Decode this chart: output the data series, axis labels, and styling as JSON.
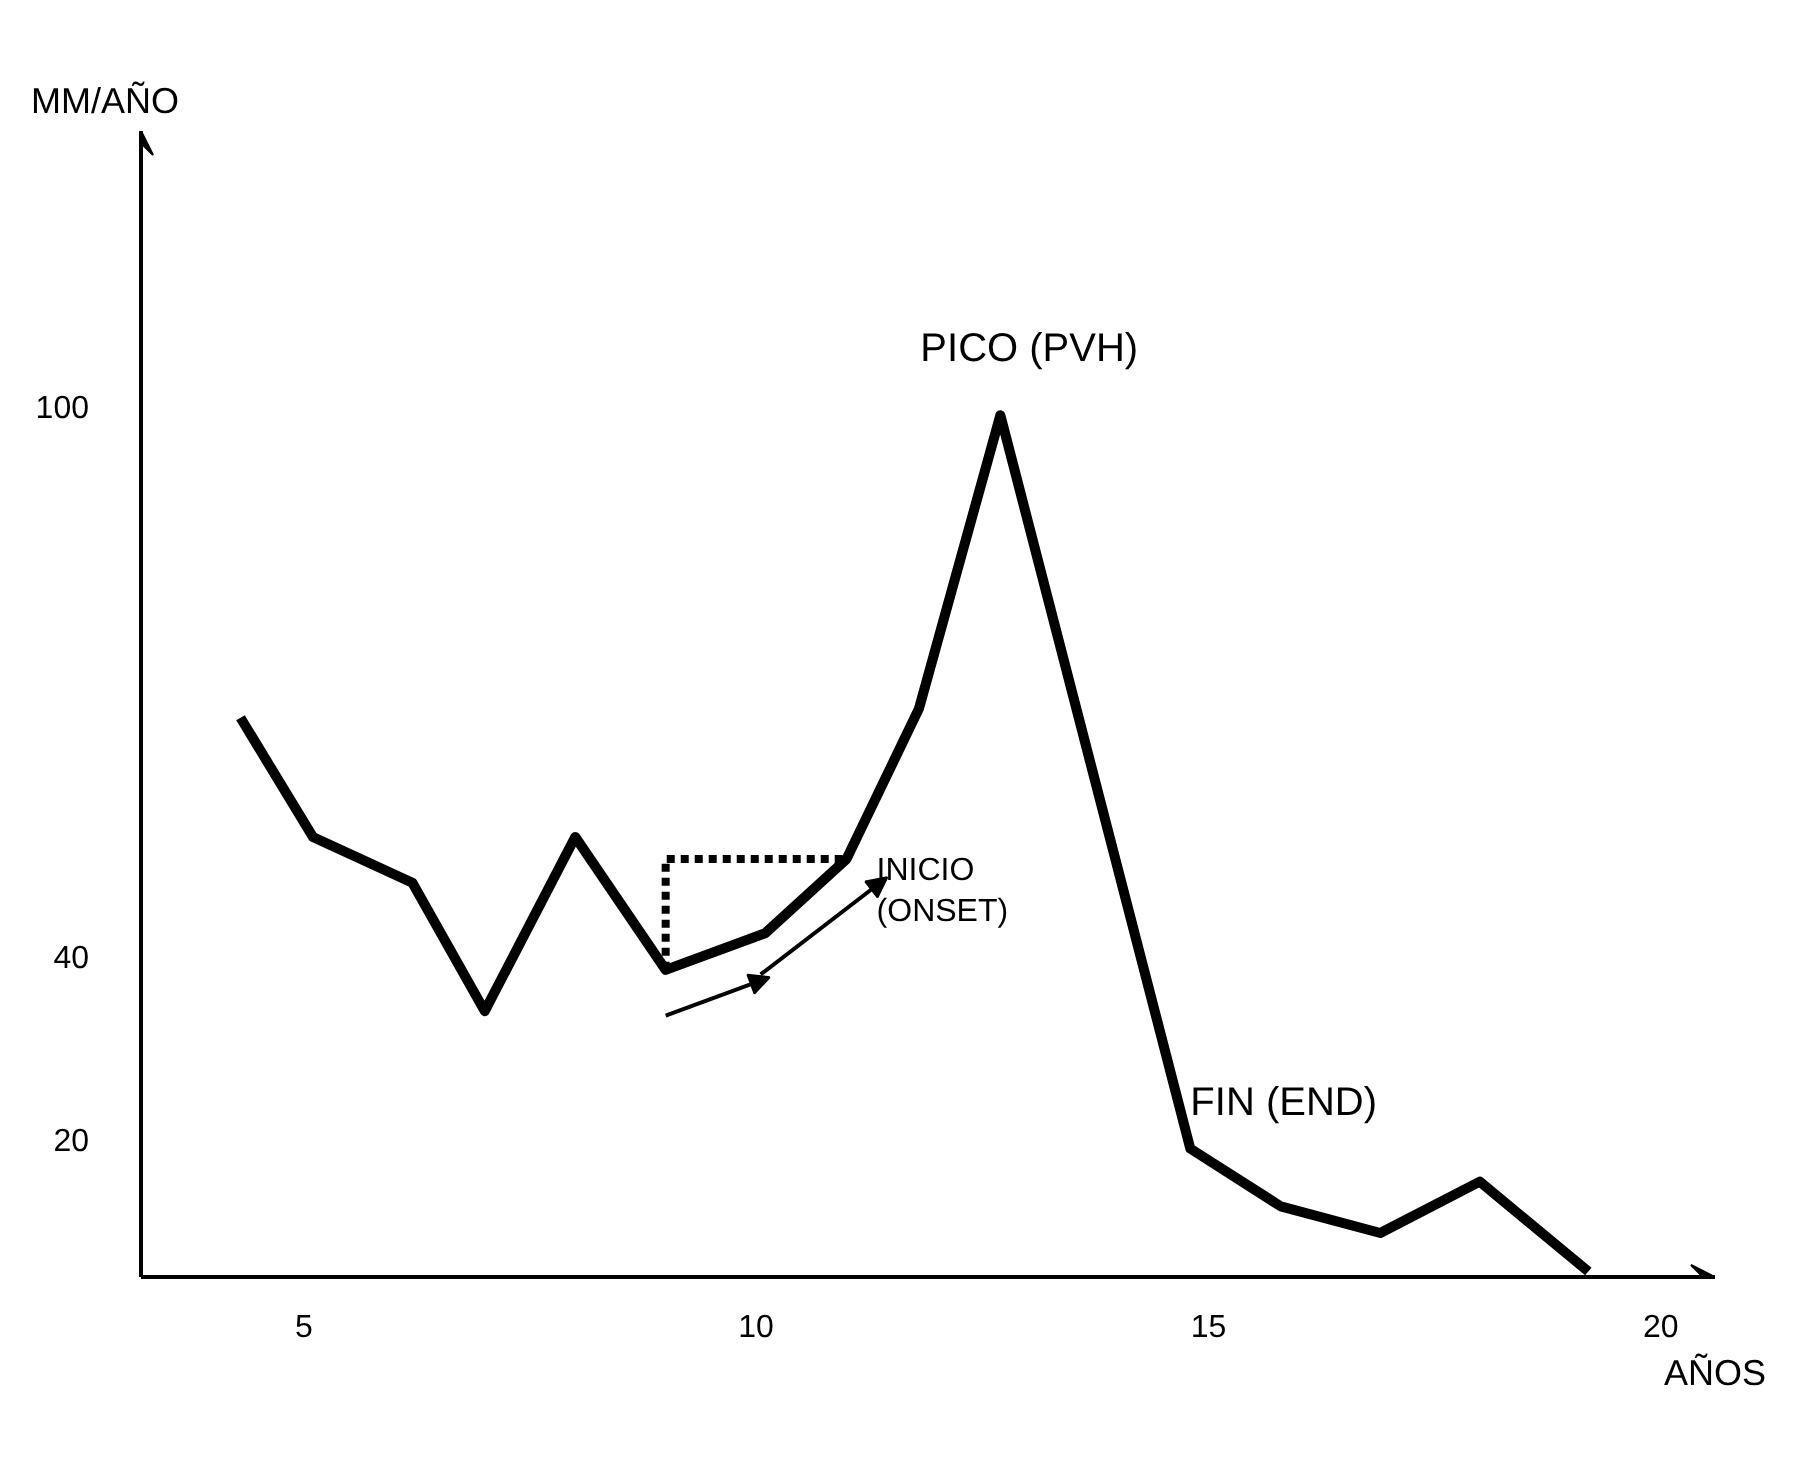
{
  "chart_data": {
    "type": "line",
    "xlabel": "AÑOS",
    "ylabel": "MM/AÑO",
    "x": [
      4.3,
      5.1,
      6.2,
      7,
      8,
      9,
      10.1,
      11,
      11.8,
      12.7,
      14.8,
      15.8,
      16.9,
      18,
      19.2
    ],
    "values": [
      66,
      53,
      48,
      34,
      53,
      38.5,
      42.5,
      50.6,
      67,
      99,
      19,
      12.7,
      9.8,
      15.4,
      5.6
    ],
    "color": "#000000",
    "xlim": [
      3.2,
      20.6
    ],
    "ylim": [
      5,
      130
    ],
    "xticks": [
      5,
      10,
      15,
      20
    ],
    "yticks": [
      20,
      40,
      100
    ],
    "grid": false,
    "marker": "none",
    "line_style": "solid",
    "annotations": [
      {
        "text": "PICO (PVH)",
        "x": 12.7,
        "y": 99
      },
      {
        "text": "INICIO\n(ONSET)",
        "x": 11,
        "y": 50.6
      },
      {
        "text": "FIN (END)",
        "x": 14.8,
        "y": 19
      }
    ]
  }
}
